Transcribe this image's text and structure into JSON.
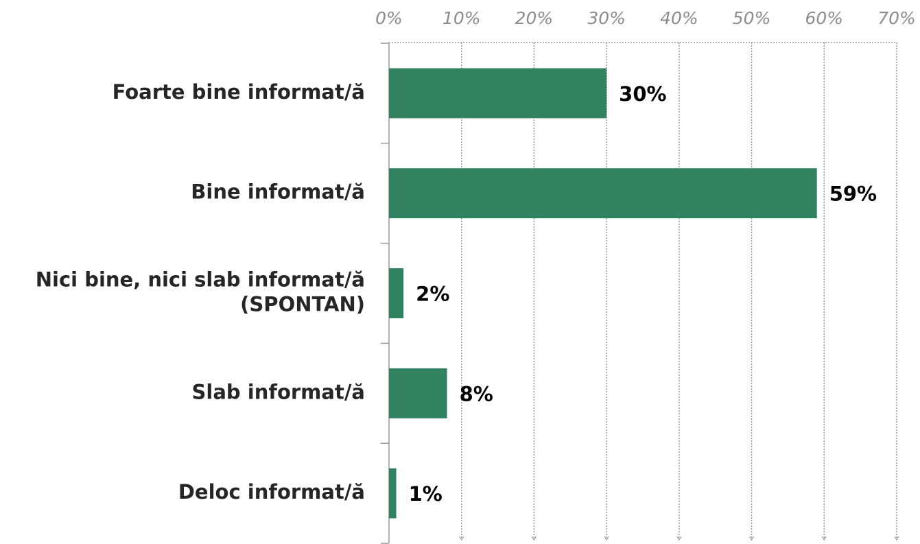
{
  "chart_data": {
    "type": "bar",
    "categories": [
      "Foarte bine informat/ă",
      "Bine informat/ă",
      "Nici bine, nici slab informat/ă\n(SPONTAN)",
      "Slab informat/ă",
      "Deloc informat/ă"
    ],
    "values": [
      30,
      59,
      2,
      8,
      1
    ],
    "value_labels": [
      "30%",
      "59%",
      "2%",
      "8%",
      "1%"
    ],
    "color": "#328262",
    "xlim": [
      0,
      70
    ],
    "xticks": [
      {
        "value": 0,
        "label": "0%"
      },
      {
        "value": 10,
        "label": "10%"
      },
      {
        "value": 20,
        "label": "20%"
      },
      {
        "value": 30,
        "label": "30%"
      },
      {
        "value": 40,
        "label": "40%"
      },
      {
        "value": 50,
        "label": "50%"
      },
      {
        "value": 60,
        "label": "60%"
      },
      {
        "value": 70,
        "label": "70%"
      }
    ],
    "grid": true
  }
}
